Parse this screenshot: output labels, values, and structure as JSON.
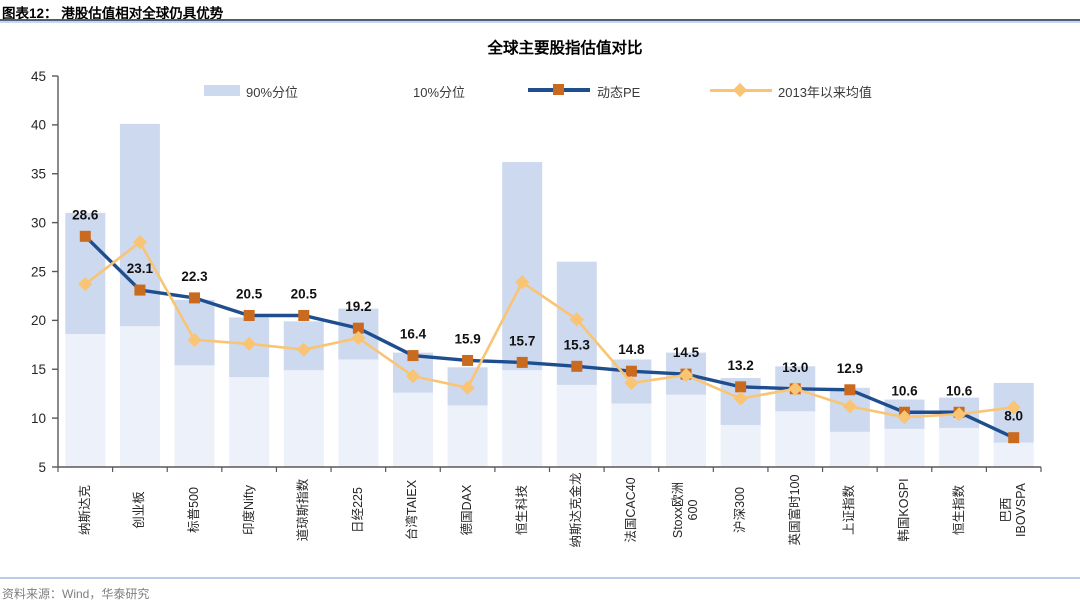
{
  "header": {
    "title": "图表12：  港股估值相对全球仍具优势"
  },
  "footer": {
    "source": "资料来源：Wind，华泰研究"
  },
  "chart_data": {
    "type": "combo",
    "title": "全球主要股指估值对比",
    "categories": [
      "纳斯达克",
      "创业板",
      "标普500",
      "印度Nifty",
      "道琼斯指数",
      "日经225",
      "台湾TAIEX",
      "德国DAX",
      "恒生科技",
      "纳斯达克金龙",
      "法国CAC40",
      "Stoxx欧洲\n600",
      "沪深300",
      "英国富时100",
      "上证指数",
      "韩国KOSPI",
      "恒生指数",
      "巴西\nIBOVSPA"
    ],
    "series": [
      {
        "name": "90%分位",
        "type": "range-bar-high",
        "values": [
          31.0,
          40.1,
          22.1,
          20.3,
          19.9,
          21.2,
          16.7,
          15.2,
          36.2,
          26.0,
          16.0,
          16.7,
          14.1,
          15.3,
          13.1,
          11.9,
          12.1,
          13.6
        ]
      },
      {
        "name": "10%分位",
        "type": "range-bar-low",
        "values": [
          18.6,
          19.4,
          15.4,
          14.2,
          14.9,
          16.0,
          12.6,
          11.3,
          14.9,
          13.4,
          11.5,
          12.4,
          9.3,
          10.7,
          8.6,
          8.9,
          9.0,
          7.5
        ]
      },
      {
        "name": "动态PE",
        "type": "line",
        "values": [
          28.6,
          23.1,
          22.3,
          20.5,
          20.5,
          19.2,
          16.4,
          15.9,
          15.7,
          15.3,
          14.8,
          14.5,
          13.2,
          13.0,
          12.9,
          10.6,
          10.6,
          8.0
        ],
        "labels_shown": true
      },
      {
        "name": "2013年以来均值",
        "type": "line",
        "values": [
          23.7,
          28.0,
          18.0,
          17.6,
          17.0,
          18.2,
          14.3,
          13.1,
          23.9,
          20.1,
          13.6,
          14.4,
          12.0,
          13.0,
          11.2,
          10.1,
          10.4,
          11.1
        ]
      }
    ],
    "legend_labels": [
      "90%分位",
      "10%分位",
      "动态PE",
      "2013年以来均值"
    ],
    "ylim": [
      5,
      45
    ],
    "yticks": [
      45,
      40,
      35,
      30,
      25,
      20,
      15,
      10,
      5
    ],
    "grid": false,
    "legend_position": "top",
    "colors": {
      "bar": "#cdd9ee",
      "bar_faint": "#edf1fa",
      "pe_line": "#1f4e8f",
      "pe_marker": "#c96a1f",
      "mean_line": "#f9c474",
      "mean_marker": "#f9c474",
      "axis": "#595959"
    }
  }
}
